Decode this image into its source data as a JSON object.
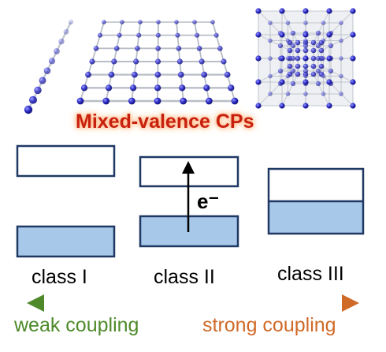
{
  "title": "Mixed-valence CPs",
  "electron_label": "e⁻",
  "classes": [
    {
      "label": "class I",
      "lower_filled": 1.0,
      "upper_filled": 0.0
    },
    {
      "label": "class II",
      "lower_filled": 1.0,
      "upper_filled": 0.0
    },
    {
      "label": "class III",
      "lower_filled": 0.55,
      "upper_filled": 0.0
    }
  ],
  "coupling": {
    "weak_label": "weak coupling",
    "strong_label": "strong coupling",
    "weak_color": "#4e8a2a",
    "strong_color": "#d06a28"
  },
  "structures": [
    "1D chain",
    "2D grid",
    "3D cube"
  ],
  "colors": {
    "title": "#c8200e",
    "band_outline": "#1f3864",
    "band_fill": "#a8c8ea",
    "node": "#2b2bc8",
    "bond": "#b9bec6"
  }
}
